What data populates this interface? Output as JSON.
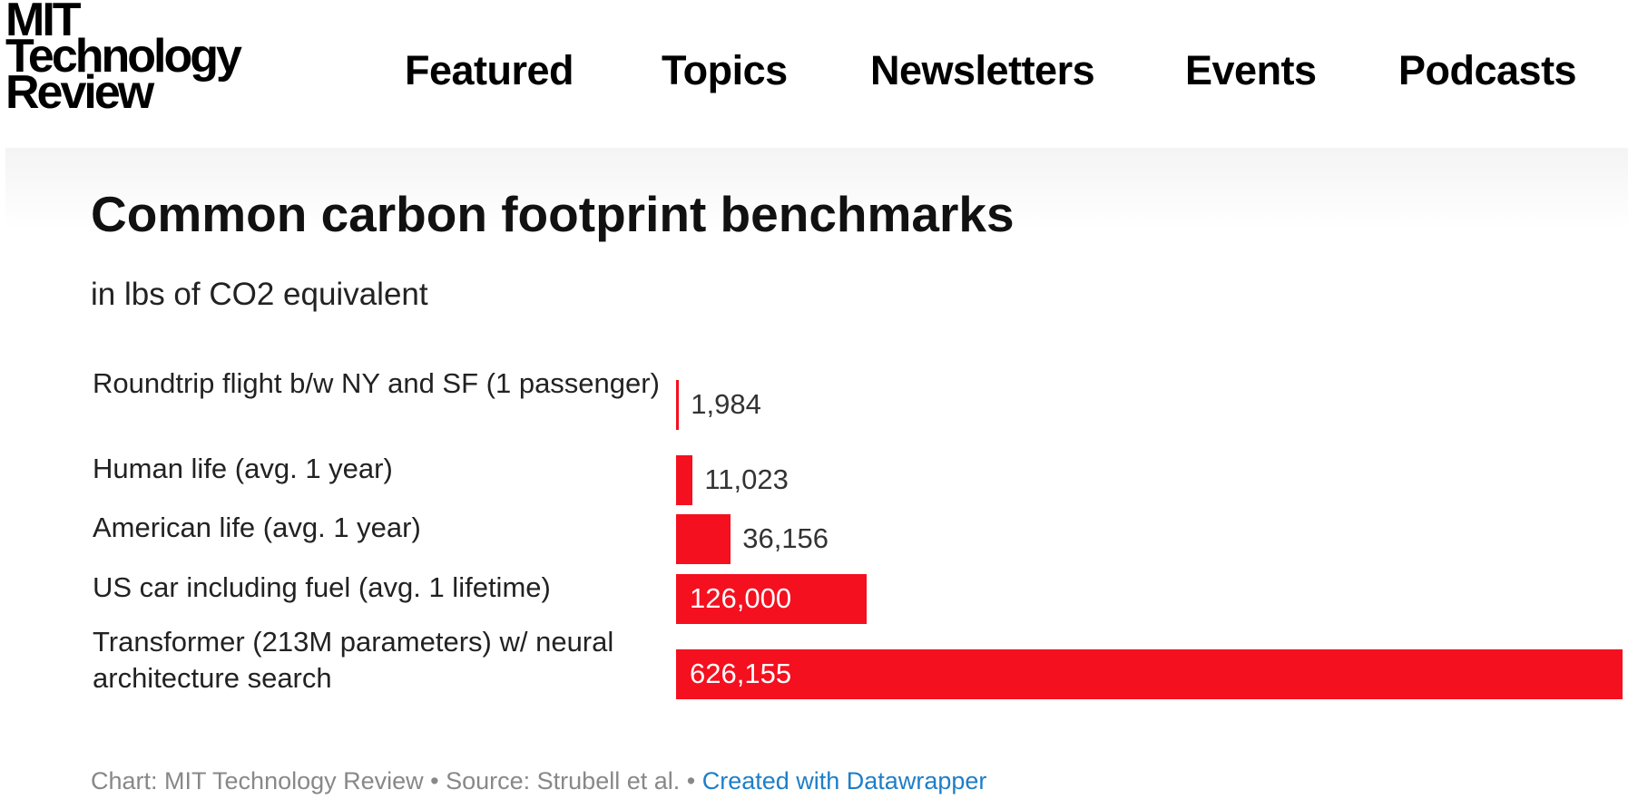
{
  "header": {
    "logo": [
      "MIT",
      "Technology",
      "Review"
    ],
    "nav": [
      "Featured",
      "Topics",
      "Newsletters",
      "Events",
      "Podcasts"
    ]
  },
  "colors": {
    "bar": "#f4101f",
    "link": "#1e7ec8"
  },
  "chart_data": {
    "type": "bar",
    "orientation": "horizontal",
    "title": "Common carbon footprint benchmarks",
    "subtitle": "in lbs of CO2 equivalent",
    "categories": [
      "Roundtrip flight b/w NY and SF (1 passenger)",
      "Human life (avg. 1 year)",
      "American life (avg. 1 year)",
      "US car including fuel (avg. 1 lifetime)",
      "Transformer (213M parameters) w/ neural architecture search"
    ],
    "values": [
      1984,
      11023,
      36156,
      126000,
      626155
    ],
    "value_labels": [
      "1,984",
      "11,023",
      "36,156",
      "126,000",
      "626,155"
    ],
    "xlim": [
      0,
      626155
    ],
    "grid": false,
    "legend": "none"
  },
  "footer": {
    "text": "Chart: MIT Technology Review • Source: Strubell et al. • ",
    "link": "Created with Datawrapper"
  }
}
